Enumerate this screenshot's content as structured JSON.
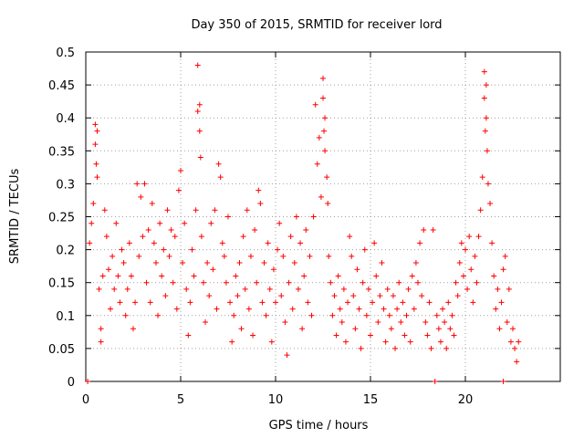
{
  "chart_data": {
    "type": "scatter",
    "title": "Day 350 of 2015, SRMTID for receiver lord",
    "xlabel": "GPS time / hours",
    "ylabel": "SRMTID / TECUs",
    "xlim": [
      0,
      25
    ],
    "ylim": [
      0,
      0.5
    ],
    "grid": true,
    "x_ticks": [
      0,
      5,
      10,
      15,
      20
    ],
    "x_tick_labels": [
      "0",
      "5",
      "10",
      "15",
      "20"
    ],
    "y_ticks": [
      0,
      0.05,
      0.1,
      0.15,
      0.2,
      0.25,
      0.3,
      0.35,
      0.4,
      0.45,
      0.5
    ],
    "y_tick_labels": [
      "0",
      "0.05",
      "0.1",
      "0.15",
      "0.2",
      "0.25",
      "0.3",
      "0.35",
      "0.4",
      "0.45",
      "0.5"
    ],
    "marker": "+",
    "color": "#ff0000",
    "series": [
      {
        "name": "SRMTID",
        "points": [
          [
            0.1,
            0.0
          ],
          [
            0.2,
            0.21
          ],
          [
            0.3,
            0.24
          ],
          [
            0.4,
            0.27
          ],
          [
            0.5,
            0.39
          ],
          [
            0.5,
            0.36
          ],
          [
            0.55,
            0.33
          ],
          [
            0.6,
            0.38
          ],
          [
            0.6,
            0.31
          ],
          [
            0.7,
            0.14
          ],
          [
            0.8,
            0.08
          ],
          [
            0.8,
            0.06
          ],
          [
            0.9,
            0.16
          ],
          [
            1.0,
            0.26
          ],
          [
            1.1,
            0.22
          ],
          [
            1.2,
            0.17
          ],
          [
            1.3,
            0.11
          ],
          [
            1.4,
            0.19
          ],
          [
            1.5,
            0.14
          ],
          [
            1.6,
            0.24
          ],
          [
            1.7,
            0.16
          ],
          [
            1.8,
            0.12
          ],
          [
            1.9,
            0.2
          ],
          [
            2.0,
            0.18
          ],
          [
            2.1,
            0.1
          ],
          [
            2.2,
            0.14
          ],
          [
            2.3,
            0.21
          ],
          [
            2.4,
            0.16
          ],
          [
            2.5,
            0.08
          ],
          [
            2.6,
            0.12
          ],
          [
            2.7,
            0.3
          ],
          [
            2.8,
            0.19
          ],
          [
            2.9,
            0.28
          ],
          [
            3.0,
            0.22
          ],
          [
            3.1,
            0.3
          ],
          [
            3.2,
            0.15
          ],
          [
            3.3,
            0.23
          ],
          [
            3.4,
            0.12
          ],
          [
            3.5,
            0.27
          ],
          [
            3.6,
            0.21
          ],
          [
            3.7,
            0.18
          ],
          [
            3.8,
            0.1
          ],
          [
            3.9,
            0.24
          ],
          [
            4.0,
            0.16
          ],
          [
            4.1,
            0.2
          ],
          [
            4.2,
            0.13
          ],
          [
            4.3,
            0.26
          ],
          [
            4.4,
            0.19
          ],
          [
            4.5,
            0.23
          ],
          [
            4.6,
            0.15
          ],
          [
            4.7,
            0.22
          ],
          [
            4.8,
            0.11
          ],
          [
            4.9,
            0.29
          ],
          [
            5.0,
            0.32
          ],
          [
            5.1,
            0.18
          ],
          [
            5.2,
            0.24
          ],
          [
            5.3,
            0.14
          ],
          [
            5.4,
            0.07
          ],
          [
            5.5,
            0.12
          ],
          [
            5.6,
            0.2
          ],
          [
            5.7,
            0.16
          ],
          [
            5.8,
            0.26
          ],
          [
            5.9,
            0.48
          ],
          [
            5.9,
            0.41
          ],
          [
            6.0,
            0.42
          ],
          [
            6.0,
            0.38
          ],
          [
            6.05,
            0.34
          ],
          [
            6.1,
            0.22
          ],
          [
            6.2,
            0.15
          ],
          [
            6.3,
            0.09
          ],
          [
            6.4,
            0.18
          ],
          [
            6.5,
            0.13
          ],
          [
            6.6,
            0.24
          ],
          [
            6.7,
            0.17
          ],
          [
            6.8,
            0.26
          ],
          [
            6.9,
            0.11
          ],
          [
            7.0,
            0.33
          ],
          [
            7.1,
            0.31
          ],
          [
            7.2,
            0.21
          ],
          [
            7.3,
            0.19
          ],
          [
            7.4,
            0.15
          ],
          [
            7.5,
            0.25
          ],
          [
            7.6,
            0.12
          ],
          [
            7.7,
            0.06
          ],
          [
            7.8,
            0.1
          ],
          [
            7.9,
            0.16
          ],
          [
            8.0,
            0.13
          ],
          [
            8.1,
            0.18
          ],
          [
            8.2,
            0.08
          ],
          [
            8.3,
            0.22
          ],
          [
            8.4,
            0.14
          ],
          [
            8.5,
            0.26
          ],
          [
            8.6,
            0.11
          ],
          [
            8.7,
            0.19
          ],
          [
            8.8,
            0.07
          ],
          [
            8.9,
            0.23
          ],
          [
            9.0,
            0.15
          ],
          [
            9.1,
            0.29
          ],
          [
            9.2,
            0.27
          ],
          [
            9.3,
            0.12
          ],
          [
            9.4,
            0.18
          ],
          [
            9.5,
            0.1
          ],
          [
            9.6,
            0.21
          ],
          [
            9.7,
            0.14
          ],
          [
            9.8,
            0.06
          ],
          [
            9.9,
            0.17
          ],
          [
            10.0,
            0.12
          ],
          [
            10.1,
            0.2
          ],
          [
            10.2,
            0.24
          ],
          [
            10.3,
            0.13
          ],
          [
            10.4,
            0.19
          ],
          [
            10.5,
            0.09
          ],
          [
            10.6,
            0.04
          ],
          [
            10.7,
            0.15
          ],
          [
            10.8,
            0.22
          ],
          [
            10.9,
            0.11
          ],
          [
            11.0,
            0.18
          ],
          [
            11.1,
            0.25
          ],
          [
            11.2,
            0.14
          ],
          [
            11.3,
            0.21
          ],
          [
            11.4,
            0.08
          ],
          [
            11.5,
            0.16
          ],
          [
            11.6,
            0.23
          ],
          [
            11.7,
            0.12
          ],
          [
            11.8,
            0.19
          ],
          [
            11.9,
            0.1
          ],
          [
            12.0,
            0.25
          ],
          [
            12.1,
            0.42
          ],
          [
            12.2,
            0.33
          ],
          [
            12.3,
            0.37
          ],
          [
            12.4,
            0.28
          ],
          [
            12.5,
            0.46
          ],
          [
            12.5,
            0.43
          ],
          [
            12.55,
            0.38
          ],
          [
            12.6,
            0.4
          ],
          [
            12.6,
            0.35
          ],
          [
            12.7,
            0.31
          ],
          [
            12.75,
            0.27
          ],
          [
            12.8,
            0.19
          ],
          [
            12.9,
            0.15
          ],
          [
            13.0,
            0.1
          ],
          [
            13.1,
            0.13
          ],
          [
            13.2,
            0.07
          ],
          [
            13.3,
            0.16
          ],
          [
            13.4,
            0.11
          ],
          [
            13.5,
            0.09
          ],
          [
            13.6,
            0.14
          ],
          [
            13.7,
            0.06
          ],
          [
            13.8,
            0.12
          ],
          [
            13.9,
            0.22
          ],
          [
            14.0,
            0.19
          ],
          [
            14.1,
            0.13
          ],
          [
            14.2,
            0.08
          ],
          [
            14.3,
            0.17
          ],
          [
            14.4,
            0.11
          ],
          [
            14.5,
            0.05
          ],
          [
            14.6,
            0.15
          ],
          [
            14.7,
            0.2
          ],
          [
            14.8,
            0.1
          ],
          [
            14.9,
            0.14
          ],
          [
            15.0,
            0.07
          ],
          [
            15.1,
            0.12
          ],
          [
            15.2,
            0.21
          ],
          [
            15.3,
            0.16
          ],
          [
            15.4,
            0.09
          ],
          [
            15.5,
            0.13
          ],
          [
            15.6,
            0.18
          ],
          [
            15.7,
            0.11
          ],
          [
            15.8,
            0.06
          ],
          [
            15.9,
            0.14
          ],
          [
            16.0,
            0.1
          ],
          [
            16.1,
            0.08
          ],
          [
            16.2,
            0.13
          ],
          [
            16.3,
            0.05
          ],
          [
            16.4,
            0.11
          ],
          [
            16.5,
            0.15
          ],
          [
            16.6,
            0.09
          ],
          [
            16.7,
            0.12
          ],
          [
            16.8,
            0.07
          ],
          [
            16.9,
            0.1
          ],
          [
            17.0,
            0.14
          ],
          [
            17.1,
            0.06
          ],
          [
            17.2,
            0.16
          ],
          [
            17.3,
            0.11
          ],
          [
            17.4,
            0.18
          ],
          [
            17.5,
            0.15
          ],
          [
            17.6,
            0.21
          ],
          [
            17.7,
            0.13
          ],
          [
            17.8,
            0.23
          ],
          [
            17.9,
            0.09
          ],
          [
            18.0,
            0.07
          ],
          [
            18.1,
            0.12
          ],
          [
            18.2,
            0.05
          ],
          [
            18.3,
            0.23
          ],
          [
            18.4,
            0.0
          ],
          [
            18.5,
            0.1
          ],
          [
            18.6,
            0.08
          ],
          [
            18.7,
            0.06
          ],
          [
            18.8,
            0.11
          ],
          [
            18.9,
            0.09
          ],
          [
            19.0,
            0.05
          ],
          [
            19.1,
            0.12
          ],
          [
            19.2,
            0.08
          ],
          [
            19.3,
            0.1
          ],
          [
            19.4,
            0.07
          ],
          [
            19.5,
            0.15
          ],
          [
            19.6,
            0.13
          ],
          [
            19.7,
            0.18
          ],
          [
            19.8,
            0.21
          ],
          [
            19.9,
            0.16
          ],
          [
            20.0,
            0.2
          ],
          [
            20.1,
            0.14
          ],
          [
            20.2,
            0.22
          ],
          [
            20.3,
            0.17
          ],
          [
            20.4,
            0.12
          ],
          [
            20.5,
            0.19
          ],
          [
            20.6,
            0.15
          ],
          [
            20.7,
            0.22
          ],
          [
            20.8,
            0.26
          ],
          [
            20.9,
            0.31
          ],
          [
            21.0,
            0.47
          ],
          [
            21.0,
            0.43
          ],
          [
            21.05,
            0.38
          ],
          [
            21.1,
            0.45
          ],
          [
            21.1,
            0.4
          ],
          [
            21.15,
            0.35
          ],
          [
            21.2,
            0.3
          ],
          [
            21.3,
            0.27
          ],
          [
            21.4,
            0.21
          ],
          [
            21.5,
            0.16
          ],
          [
            21.6,
            0.11
          ],
          [
            21.7,
            0.14
          ],
          [
            21.8,
            0.08
          ],
          [
            21.9,
            0.12
          ],
          [
            22.0,
            0.17
          ],
          [
            22.1,
            0.19
          ],
          [
            22.2,
            0.09
          ],
          [
            22.3,
            0.14
          ],
          [
            22.4,
            0.06
          ],
          [
            22.5,
            0.08
          ],
          [
            22.6,
            0.05
          ],
          [
            22.7,
            0.03
          ],
          [
            22.8,
            0.06
          ],
          [
            22.0,
            0.0
          ]
        ]
      }
    ]
  }
}
